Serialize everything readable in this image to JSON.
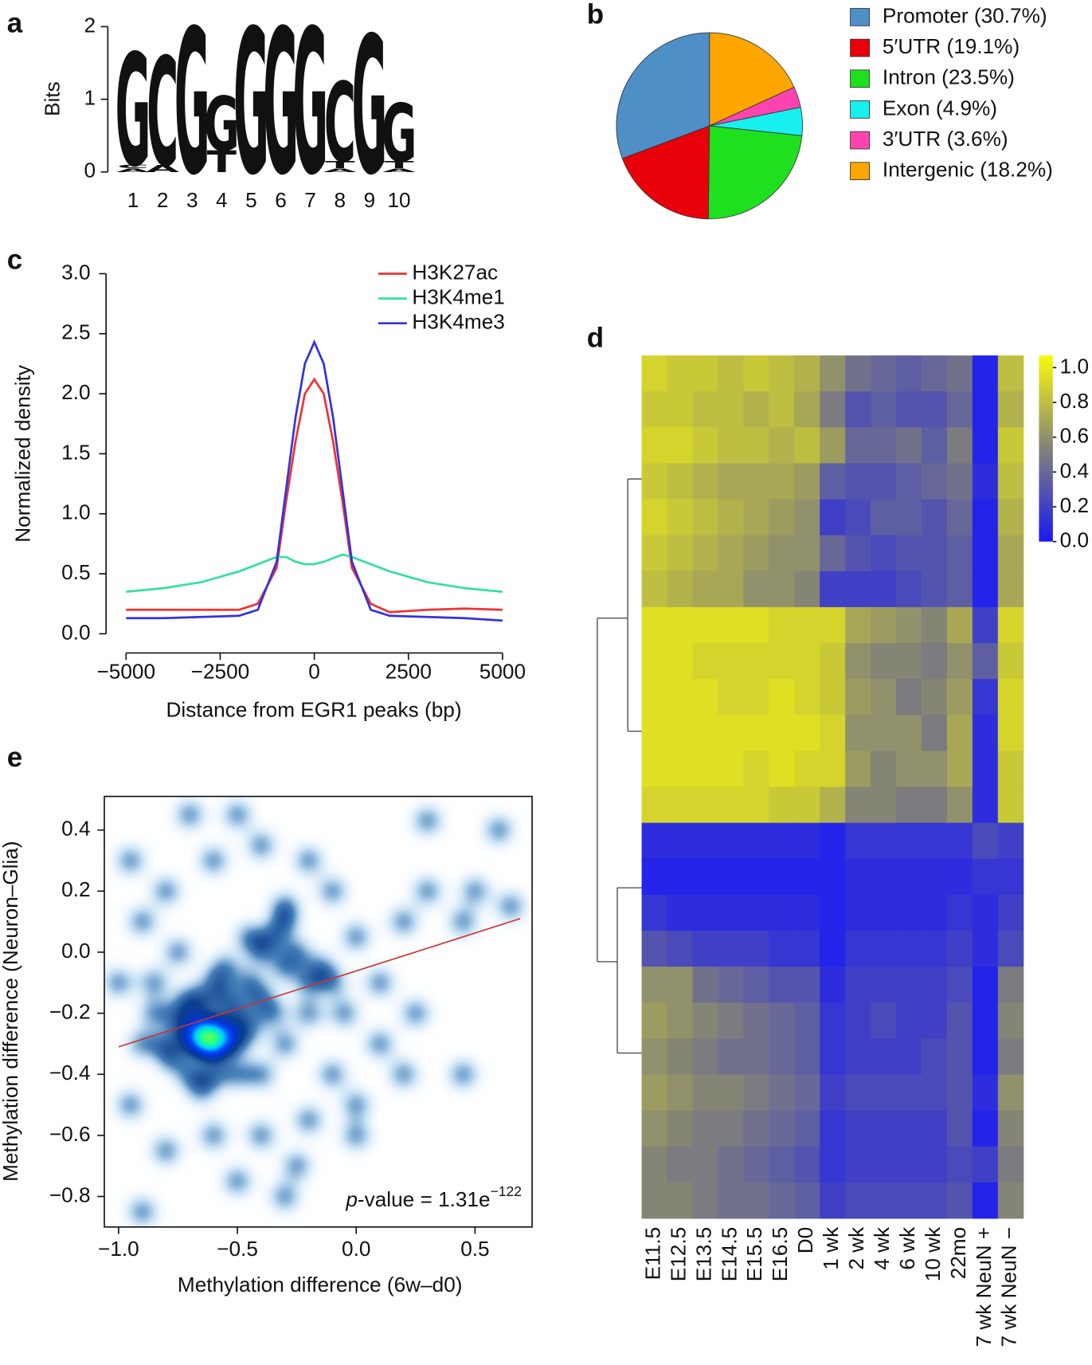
{
  "chart_data": [
    {
      "type": "logo",
      "panel": "a",
      "ylabel": "Bits",
      "ylim": [
        0,
        2
      ],
      "yticks": [
        0,
        1,
        2
      ],
      "categories": [
        "1",
        "2",
        "3",
        "4",
        "5",
        "6",
        "7",
        "8",
        "9",
        "10"
      ],
      "series": [
        {
          "name": "A",
          "color": "#e02020",
          "values": [
            0.05,
            0.1,
            0,
            0,
            0,
            0,
            0,
            0.05,
            0,
            0.05
          ]
        },
        {
          "name": "T",
          "color": "#16a016",
          "values": [
            0,
            0,
            0,
            0.3,
            0,
            0,
            0,
            0.1,
            0,
            0.1
          ]
        },
        {
          "name": "C",
          "color": "#1a1acc",
          "values": [
            0.05,
            1.5,
            0,
            0,
            0,
            0,
            0,
            1.1,
            0,
            0
          ]
        },
        {
          "name": "G",
          "color": "#f5a500",
          "values": [
            1.55,
            0,
            2.0,
            0.75,
            2.0,
            2.0,
            2.0,
            0,
            1.9,
            0.8
          ]
        }
      ]
    },
    {
      "type": "pie",
      "panel": "b",
      "categories": [
        "Promoter (30.7%)",
        "5′UTR (19.1%)",
        "Intron (23.5%)",
        "Exon (4.9%)",
        "3′UTR (3.6%)",
        "Intergenic (18.2%)"
      ],
      "values": [
        30.7,
        19.1,
        23.5,
        4.9,
        3.6,
        18.2
      ],
      "colors": [
        "#4f8fc8",
        "#e8000b",
        "#1fe01f",
        "#18f0f0",
        "#ff44b0",
        "#ffa500"
      ]
    },
    {
      "type": "line",
      "panel": "c",
      "xlabel": "Distance from EGR1 peaks (bp)",
      "ylabel": "Normalized density",
      "xlim": [
        -5000,
        5000
      ],
      "ylim": [
        0,
        3
      ],
      "xticks": [
        {
          "value": -5000,
          "label": "−5000"
        },
        {
          "value": -2500,
          "label": "−2500"
        },
        0,
        2500,
        5000
      ],
      "yticks": [
        {
          "value": 0,
          "label": "0.0"
        },
        0.5,
        {
          "value": 1,
          "label": "1.0"
        },
        1.5,
        {
          "value": 2,
          "label": "2.0"
        },
        2.5,
        {
          "value": 3,
          "label": "3.0"
        }
      ],
      "legend": "upper right",
      "x": [
        -5000,
        -4000,
        -3000,
        -2000,
        -1500,
        -1000,
        -750,
        -500,
        -250,
        0,
        250,
        500,
        750,
        1000,
        1500,
        2000,
        3000,
        4000,
        5000
      ],
      "series": [
        {
          "name": "H3K27ac",
          "color": "#ee3333",
          "values": [
            0.2,
            0.2,
            0.2,
            0.2,
            0.25,
            0.55,
            1.1,
            1.6,
            2.0,
            2.12,
            2.0,
            1.6,
            1.1,
            0.55,
            0.25,
            0.18,
            0.2,
            0.21,
            0.2
          ]
        },
        {
          "name": "H3K4me1",
          "color": "#33e0a0",
          "values": [
            0.35,
            0.38,
            0.43,
            0.52,
            0.58,
            0.64,
            0.64,
            0.6,
            0.58,
            0.58,
            0.6,
            0.63,
            0.66,
            0.64,
            0.58,
            0.52,
            0.43,
            0.38,
            0.35
          ]
        },
        {
          "name": "H3K4me3",
          "color": "#3333dd",
          "values": [
            0.13,
            0.13,
            0.14,
            0.15,
            0.2,
            0.6,
            1.2,
            1.8,
            2.25,
            2.43,
            2.25,
            1.8,
            1.2,
            0.6,
            0.2,
            0.15,
            0.14,
            0.13,
            0.11
          ]
        }
      ]
    },
    {
      "type": "heatmap",
      "panel": "d",
      "categories": [
        "E11.5",
        "E12.5",
        "E13.5",
        "E14.5",
        "E15.5",
        "E16.5",
        "D0",
        "1 wk",
        "2 wk",
        "4 wk",
        "6 wk",
        "10 wk",
        "22mo",
        "7 wk NeuN +",
        "7 wk NeuN −"
      ],
      "clim": [
        0,
        1.07
      ],
      "cticks": [
        {
          "value": 0,
          "label": "0.0"
        },
        0.2,
        0.4,
        0.6,
        0.8,
        {
          "value": 1,
          "label": "1.0"
        }
      ],
      "z": [
        [
          0.9,
          0.85,
          0.85,
          0.8,
          0.85,
          0.8,
          0.75,
          0.6,
          0.45,
          0.4,
          0.35,
          0.4,
          0.45,
          0.05,
          0.8
        ],
        [
          0.85,
          0.85,
          0.8,
          0.8,
          0.75,
          0.8,
          0.7,
          0.5,
          0.3,
          0.35,
          0.3,
          0.3,
          0.4,
          0.05,
          0.75
        ],
        [
          0.9,
          0.9,
          0.85,
          0.8,
          0.8,
          0.75,
          0.8,
          0.65,
          0.4,
          0.4,
          0.45,
          0.35,
          0.5,
          0.05,
          0.85
        ],
        [
          0.85,
          0.8,
          0.75,
          0.7,
          0.7,
          0.7,
          0.65,
          0.35,
          0.3,
          0.3,
          0.35,
          0.4,
          0.45,
          0.1,
          0.8
        ],
        [
          0.9,
          0.85,
          0.8,
          0.75,
          0.7,
          0.65,
          0.6,
          0.2,
          0.25,
          0.35,
          0.35,
          0.3,
          0.4,
          0.05,
          0.75
        ],
        [
          0.85,
          0.8,
          0.75,
          0.7,
          0.65,
          0.6,
          0.6,
          0.4,
          0.3,
          0.25,
          0.3,
          0.3,
          0.35,
          0.05,
          0.7
        ],
        [
          0.8,
          0.75,
          0.7,
          0.7,
          0.6,
          0.6,
          0.55,
          0.2,
          0.2,
          0.2,
          0.25,
          0.3,
          0.35,
          0.05,
          0.7
        ],
        [
          0.95,
          0.95,
          0.95,
          0.95,
          0.95,
          0.9,
          0.9,
          0.9,
          0.7,
          0.65,
          0.6,
          0.55,
          0.7,
          0.2,
          0.9
        ],
        [
          0.95,
          0.95,
          0.9,
          0.9,
          0.9,
          0.9,
          0.9,
          0.85,
          0.6,
          0.55,
          0.55,
          0.5,
          0.6,
          0.35,
          0.85
        ],
        [
          0.95,
          0.95,
          0.95,
          0.9,
          0.9,
          0.95,
          0.9,
          0.85,
          0.65,
          0.6,
          0.5,
          0.55,
          0.65,
          0.15,
          0.9
        ],
        [
          0.95,
          0.95,
          0.95,
          0.95,
          0.95,
          0.95,
          0.95,
          0.9,
          0.6,
          0.6,
          0.6,
          0.5,
          0.7,
          0.1,
          0.9
        ],
        [
          0.95,
          0.95,
          0.95,
          0.95,
          0.9,
          0.95,
          0.9,
          0.9,
          0.65,
          0.55,
          0.6,
          0.6,
          0.7,
          0.1,
          0.85
        ],
        [
          0.9,
          0.9,
          0.9,
          0.9,
          0.9,
          0.85,
          0.85,
          0.75,
          0.55,
          0.55,
          0.5,
          0.5,
          0.6,
          0.1,
          0.85
        ],
        [
          0.1,
          0.1,
          0.1,
          0.1,
          0.1,
          0.1,
          0.1,
          0.05,
          0.15,
          0.15,
          0.15,
          0.15,
          0.15,
          0.25,
          0.2
        ],
        [
          0.05,
          0.05,
          0.05,
          0.05,
          0.05,
          0.05,
          0.05,
          0.05,
          0.1,
          0.1,
          0.1,
          0.1,
          0.1,
          0.15,
          0.15
        ],
        [
          0.15,
          0.1,
          0.1,
          0.1,
          0.1,
          0.1,
          0.1,
          0.05,
          0.1,
          0.1,
          0.1,
          0.1,
          0.15,
          0.1,
          0.2
        ],
        [
          0.3,
          0.25,
          0.2,
          0.2,
          0.2,
          0.15,
          0.15,
          0.05,
          0.15,
          0.15,
          0.15,
          0.15,
          0.2,
          0.1,
          0.25
        ],
        [
          0.6,
          0.6,
          0.45,
          0.4,
          0.35,
          0.3,
          0.3,
          0.1,
          0.2,
          0.2,
          0.2,
          0.2,
          0.25,
          0.05,
          0.5
        ],
        [
          0.65,
          0.6,
          0.55,
          0.5,
          0.45,
          0.4,
          0.35,
          0.15,
          0.2,
          0.25,
          0.2,
          0.2,
          0.3,
          0.05,
          0.55
        ],
        [
          0.6,
          0.55,
          0.5,
          0.45,
          0.45,
          0.4,
          0.35,
          0.15,
          0.2,
          0.2,
          0.2,
          0.25,
          0.3,
          0.05,
          0.5
        ],
        [
          0.65,
          0.6,
          0.55,
          0.55,
          0.5,
          0.45,
          0.4,
          0.2,
          0.25,
          0.25,
          0.25,
          0.25,
          0.3,
          0.1,
          0.6
        ],
        [
          0.6,
          0.55,
          0.5,
          0.5,
          0.45,
          0.4,
          0.35,
          0.15,
          0.2,
          0.2,
          0.2,
          0.2,
          0.3,
          0.05,
          0.55
        ],
        [
          0.55,
          0.5,
          0.5,
          0.45,
          0.4,
          0.35,
          0.3,
          0.15,
          0.2,
          0.2,
          0.2,
          0.2,
          0.25,
          0.2,
          0.5
        ],
        [
          0.55,
          0.55,
          0.5,
          0.45,
          0.45,
          0.4,
          0.35,
          0.2,
          0.25,
          0.25,
          0.25,
          0.25,
          0.3,
          0.05,
          0.55
        ]
      ]
    },
    {
      "type": "density",
      "panel": "e",
      "xlabel": "Methylation difference (6w–d0)",
      "ylabel": "Methylation difference (Neuron–Glia)",
      "xlim": [
        -1.06,
        0.74
      ],
      "ylim": [
        -0.9,
        0.51
      ],
      "xticks": [
        {
          "value": -1,
          "label": "−1.0"
        },
        {
          "value": -0.5,
          "label": "−0.5"
        },
        {
          "value": 0,
          "label": "0.0"
        },
        0.5
      ],
      "yticks": [
        {
          "value": -0.8,
          "label": "−0.8"
        },
        {
          "value": -0.6,
          "label": "−0.6"
        },
        {
          "value": -0.4,
          "label": "−0.4"
        },
        {
          "value": -0.2,
          "label": "−0.2"
        },
        {
          "value": 0,
          "label": "0.0"
        },
        0.2,
        0.4
      ],
      "annotation": {
        "italic": "p",
        "text": "-value = 1.31e",
        "sup": "−122"
      },
      "fit": {
        "color": "#cc3333",
        "x": [
          -1.0,
          0.69
        ],
        "y": [
          -0.31,
          0.11
        ]
      },
      "x": [
        -0.65,
        -0.6,
        -0.55,
        -0.68,
        -0.62,
        -0.58,
        -0.66,
        -0.6,
        -0.63,
        -0.57,
        -0.64,
        -0.61,
        -0.75,
        -0.7,
        -0.6,
        -0.5,
        -0.45,
        -0.4,
        -0.55,
        -0.72,
        -0.5,
        -0.45,
        -0.65,
        -0.55,
        -0.35,
        -0.3,
        -0.25,
        -0.3,
        -0.35,
        -0.8,
        -0.85,
        -0.78,
        -0.2,
        -0.15,
        -0.4,
        -0.6,
        -0.5,
        -0.7,
        -0.3,
        -0.2,
        -0.05,
        -0.1,
        -0.45,
        -0.3,
        -0.65,
        -0.4,
        -0.9,
        -0.85,
        -0.75,
        -0.9,
        -0.8,
        -0.6,
        -0.4,
        -0.5,
        -0.2,
        -0.1,
        0.0,
        0.1,
        0.2,
        0.3,
        0.5,
        0.45,
        0.6,
        0.65,
        0.3,
        0.1,
        0.2,
        0.45,
        0.0,
        -0.2,
        -0.4,
        -0.6,
        -0.8,
        -0.9,
        -0.5,
        -0.25,
        -0.95,
        -1.0,
        -0.95,
        0.0,
        -0.1,
        0.25,
        -0.7,
        -0.3
      ],
      "y": [
        -0.28,
        -0.3,
        -0.27,
        -0.3,
        -0.25,
        -0.32,
        -0.26,
        -0.28,
        -0.3,
        -0.26,
        -0.29,
        -0.27,
        -0.2,
        -0.15,
        -0.1,
        -0.2,
        -0.25,
        -0.15,
        -0.05,
        -0.25,
        -0.3,
        -0.1,
        -0.18,
        -0.15,
        0.05,
        0.1,
        0.0,
        -0.05,
        -0.2,
        -0.3,
        -0.2,
        -0.35,
        -0.1,
        -0.05,
        0.0,
        -0.4,
        -0.4,
        -0.4,
        -0.3,
        -0.2,
        -0.2,
        -0.1,
        0.05,
        0.15,
        -0.45,
        -0.4,
        -0.3,
        -0.1,
        0.0,
        0.1,
        0.2,
        0.3,
        0.35,
        0.45,
        0.3,
        0.2,
        0.05,
        -0.1,
        0.1,
        0.2,
        0.2,
        0.1,
        0.4,
        0.15,
        0.43,
        -0.3,
        -0.4,
        -0.4,
        -0.5,
        -0.55,
        -0.6,
        -0.6,
        -0.65,
        -0.85,
        -0.75,
        -0.7,
        -0.5,
        -0.1,
        0.3,
        -0.6,
        -0.4,
        -0.2,
        0.45,
        -0.8
      ]
    }
  ]
}
